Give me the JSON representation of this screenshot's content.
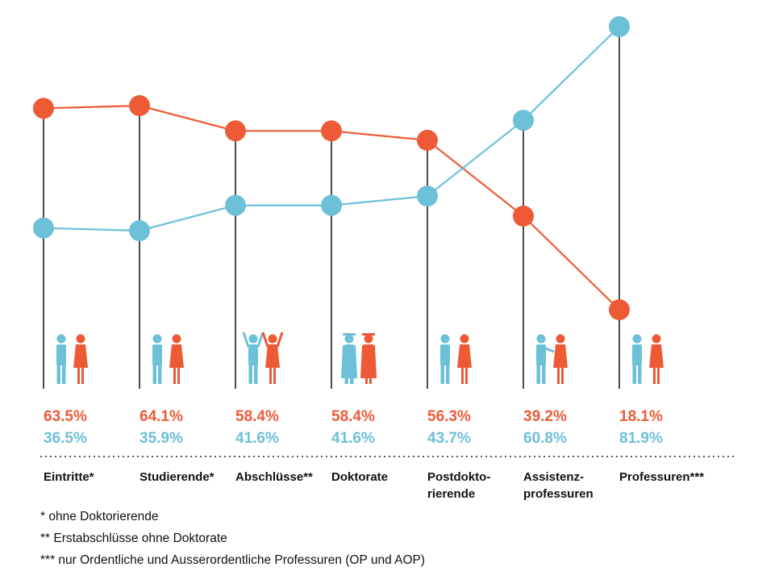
{
  "colors": {
    "female": "#ee5a36",
    "male": "#6cc0d8",
    "stem": "#111111"
  },
  "chart_data": {
    "type": "line",
    "categories": [
      [
        "Eintritte*"
      ],
      [
        "Studierende*"
      ],
      [
        "Abschlüsse**"
      ],
      [
        "Doktorate"
      ],
      [
        "Postdokto-",
        "rierende"
      ],
      [
        "Assistenz-",
        "professuren"
      ],
      [
        "Professuren***"
      ]
    ],
    "series": [
      {
        "key": "female",
        "values": [
          63.5,
          64.1,
          58.4,
          58.4,
          56.3,
          39.2,
          18.1
        ],
        "labels": [
          "63.5%",
          "64.1%",
          "58.4%",
          "58.4%",
          "56.3%",
          "39.2%",
          "18.1%"
        ]
      },
      {
        "key": "male",
        "values": [
          36.5,
          35.9,
          41.6,
          41.6,
          43.7,
          60.8,
          81.9
        ],
        "labels": [
          "36.5%",
          "35.9%",
          "41.6%",
          "41.6%",
          "43.7%",
          "60.8%",
          "81.9%"
        ]
      }
    ],
    "icons": [
      "person-standing-icon",
      "person-walking-icon",
      "person-cheering-icon",
      "person-graduate-icon",
      "person-standing-icon",
      "person-pointing-icon",
      "person-suit-icon"
    ]
  },
  "footnotes": [
    "*  ohne Doktorierende",
    "**  Erstabschlüsse ohne Doktorate",
    "*** nur Ordentliche und Ausserordentliche Professuren (OP und AOP)"
  ]
}
